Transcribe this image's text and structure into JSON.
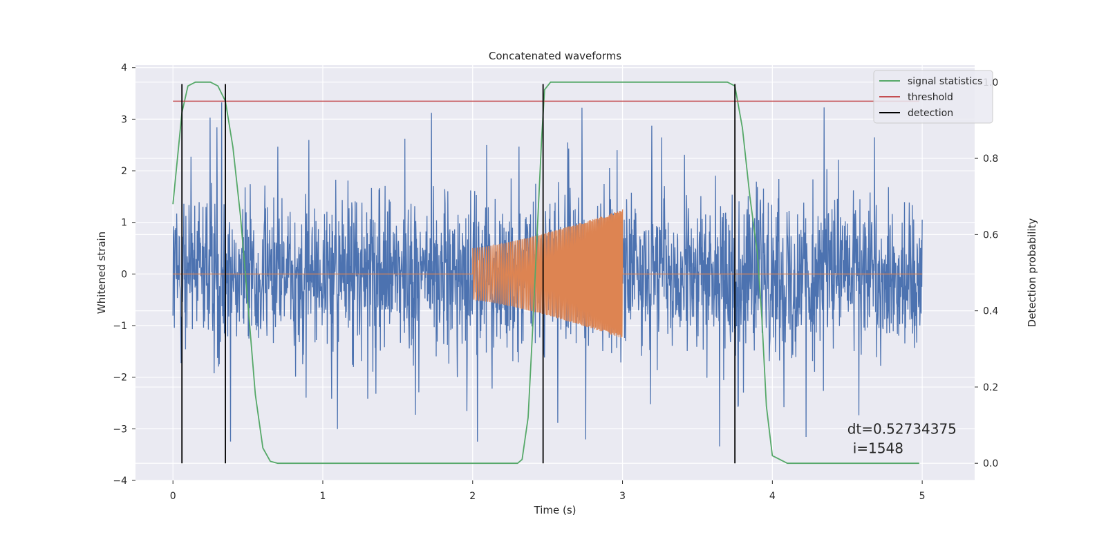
{
  "chart_data": {
    "type": "line",
    "title": "Concatenated waveforms",
    "xlabel": "Time (s)",
    "ylabel_left": "Whitened strain",
    "ylabel_right": "Detection probability",
    "xlim": [
      -0.25,
      5.35
    ],
    "ylim_left": [
      -4.0,
      4.05
    ],
    "ylim_right": [
      -0.045,
      1.045
    ],
    "x_ticks": [
      0,
      1,
      2,
      3,
      4,
      5
    ],
    "x_tick_labels": [
      "0",
      "1",
      "2",
      "3",
      "4",
      "5"
    ],
    "y_left_ticks": [
      -4,
      -3,
      -2,
      -1,
      0,
      1,
      2,
      3,
      4
    ],
    "y_left_tick_labels": [
      "−4",
      "−3",
      "−2",
      "−1",
      "0",
      "1",
      "2",
      "3",
      "4"
    ],
    "y_right_ticks": [
      0.0,
      0.2,
      0.4,
      0.6,
      0.8,
      1.0
    ],
    "y_right_tick_labels": [
      "0.0",
      "0.2",
      "0.4",
      "0.6",
      "0.8",
      "1.0"
    ],
    "grid": true,
    "legend_position": "top-right",
    "colors": {
      "background": "#eaeaf2",
      "grid": "#ffffff",
      "noise": "#4c72b0",
      "injection": "#dd8452",
      "statistics": "#55a868",
      "threshold": "#c44e52",
      "detection": "#000000"
    },
    "series": [
      {
        "name": "",
        "axis": "left",
        "kind": "noise",
        "x_range": [
          0,
          5
        ],
        "description_values": {
          "std": 0.75,
          "min": -3.65,
          "max": 3.7
        }
      },
      {
        "name": "",
        "axis": "left",
        "kind": "chirp",
        "x": [
          0,
          2.0,
          2.0,
          2.5,
          3.0,
          3.0,
          5
        ],
        "envelope": [
          0,
          0,
          0.5,
          0.8,
          1.25,
          0,
          0
        ]
      },
      {
        "name": "signal statistics",
        "axis": "right",
        "x": [
          0,
          0.03,
          0.06,
          0.1,
          0.15,
          0.2,
          0.25,
          0.3,
          0.35,
          0.4,
          0.45,
          0.5,
          0.55,
          0.6,
          0.65,
          0.7,
          2.3,
          2.33,
          2.37,
          2.4,
          2.43,
          2.46,
          2.48,
          2.52,
          2.6,
          3.7,
          3.75,
          3.8,
          3.85,
          3.9,
          3.93,
          3.96,
          4.0,
          4.1,
          4.98
        ],
        "y": [
          0.68,
          0.8,
          0.92,
          0.99,
          1.0,
          1.0,
          1.0,
          0.99,
          0.95,
          0.83,
          0.65,
          0.42,
          0.18,
          0.04,
          0.005,
          0.0,
          0.0,
          0.01,
          0.12,
          0.35,
          0.6,
          0.85,
          0.98,
          1.0,
          1.0,
          1.0,
          0.99,
          0.88,
          0.7,
          0.55,
          0.38,
          0.15,
          0.02,
          0.0,
          0.0
        ]
      },
      {
        "name": "threshold",
        "axis": "right",
        "x": [
          0,
          4.98
        ],
        "y": [
          0.95,
          0.95
        ]
      },
      {
        "name": "detection",
        "axis": "right",
        "kind": "vlines",
        "x": [
          0.06,
          0.35,
          2.47,
          3.75
        ],
        "y_range": [
          0.0,
          0.995
        ]
      }
    ],
    "annotation": {
      "line1": "dt=0.52734375",
      "line2": "i=1548",
      "x": 4.5,
      "y_left": -3.0
    }
  }
}
